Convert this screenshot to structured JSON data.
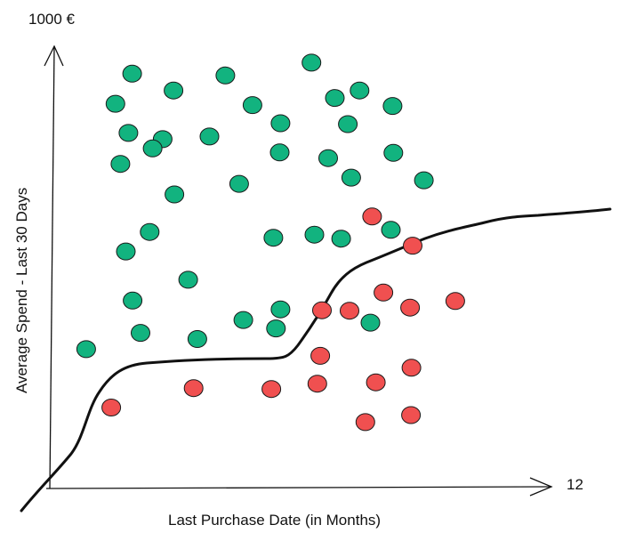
{
  "axes": {
    "y_max_label": "1000 €",
    "x_max_label": "12",
    "x_label": "Last Purchase Date (in Months)",
    "y_label": "Average Spend - Last 30 Days"
  },
  "colors": {
    "class_a": "#12b37f",
    "class_b": "#f05050",
    "line": "#111111"
  },
  "points": {
    "class_a": [
      [
        1.97,
        938
      ],
      [
        2.7,
        790
      ],
      [
        1.57,
        870
      ],
      [
        2.98,
        665
      ],
      [
        2.96,
        900
      ],
      [
        1.88,
        804
      ],
      [
        1.69,
        734
      ],
      [
        2.46,
        769
      ],
      [
        3.82,
        796
      ],
      [
        2.39,
        580
      ],
      [
        1.82,
        536
      ],
      [
        3.31,
        472
      ],
      [
        4.2,
        934
      ],
      [
        4.85,
        867
      ],
      [
        6.26,
        963
      ],
      [
        6.82,
        883
      ],
      [
        7.41,
        900
      ],
      [
        8.2,
        865
      ],
      [
        7.13,
        824
      ],
      [
        5.52,
        826
      ],
      [
        6.66,
        747
      ],
      [
        5.5,
        760
      ],
      [
        7.21,
        703
      ],
      [
        8.22,
        759
      ],
      [
        4.53,
        689
      ],
      [
        5.35,
        567
      ],
      [
        5.52,
        405
      ],
      [
        6.33,
        574
      ],
      [
        6.97,
        565
      ],
      [
        8.95,
        697
      ],
      [
        8.16,
        585
      ],
      [
        0.87,
        315
      ],
      [
        2.17,
        352
      ],
      [
        3.53,
        338
      ],
      [
        4.63,
        381
      ],
      [
        5.41,
        362
      ],
      [
        7.67,
        375
      ],
      [
        1.98,
        425
      ]
    ],
    "class_b": [
      [
        1.47,
        183
      ],
      [
        3.44,
        227
      ],
      [
        5.3,
        225
      ],
      [
        6.4,
        237
      ],
      [
        6.47,
        300
      ],
      [
        6.51,
        403
      ],
      [
        7.17,
        402
      ],
      [
        7.71,
        615
      ],
      [
        8.68,
        549
      ],
      [
        7.98,
        443
      ],
      [
        8.62,
        409
      ],
      [
        9.7,
        424
      ],
      [
        8.65,
        273
      ],
      [
        7.8,
        240
      ],
      [
        8.64,
        166
      ],
      [
        7.55,
        150
      ]
    ]
  }
}
